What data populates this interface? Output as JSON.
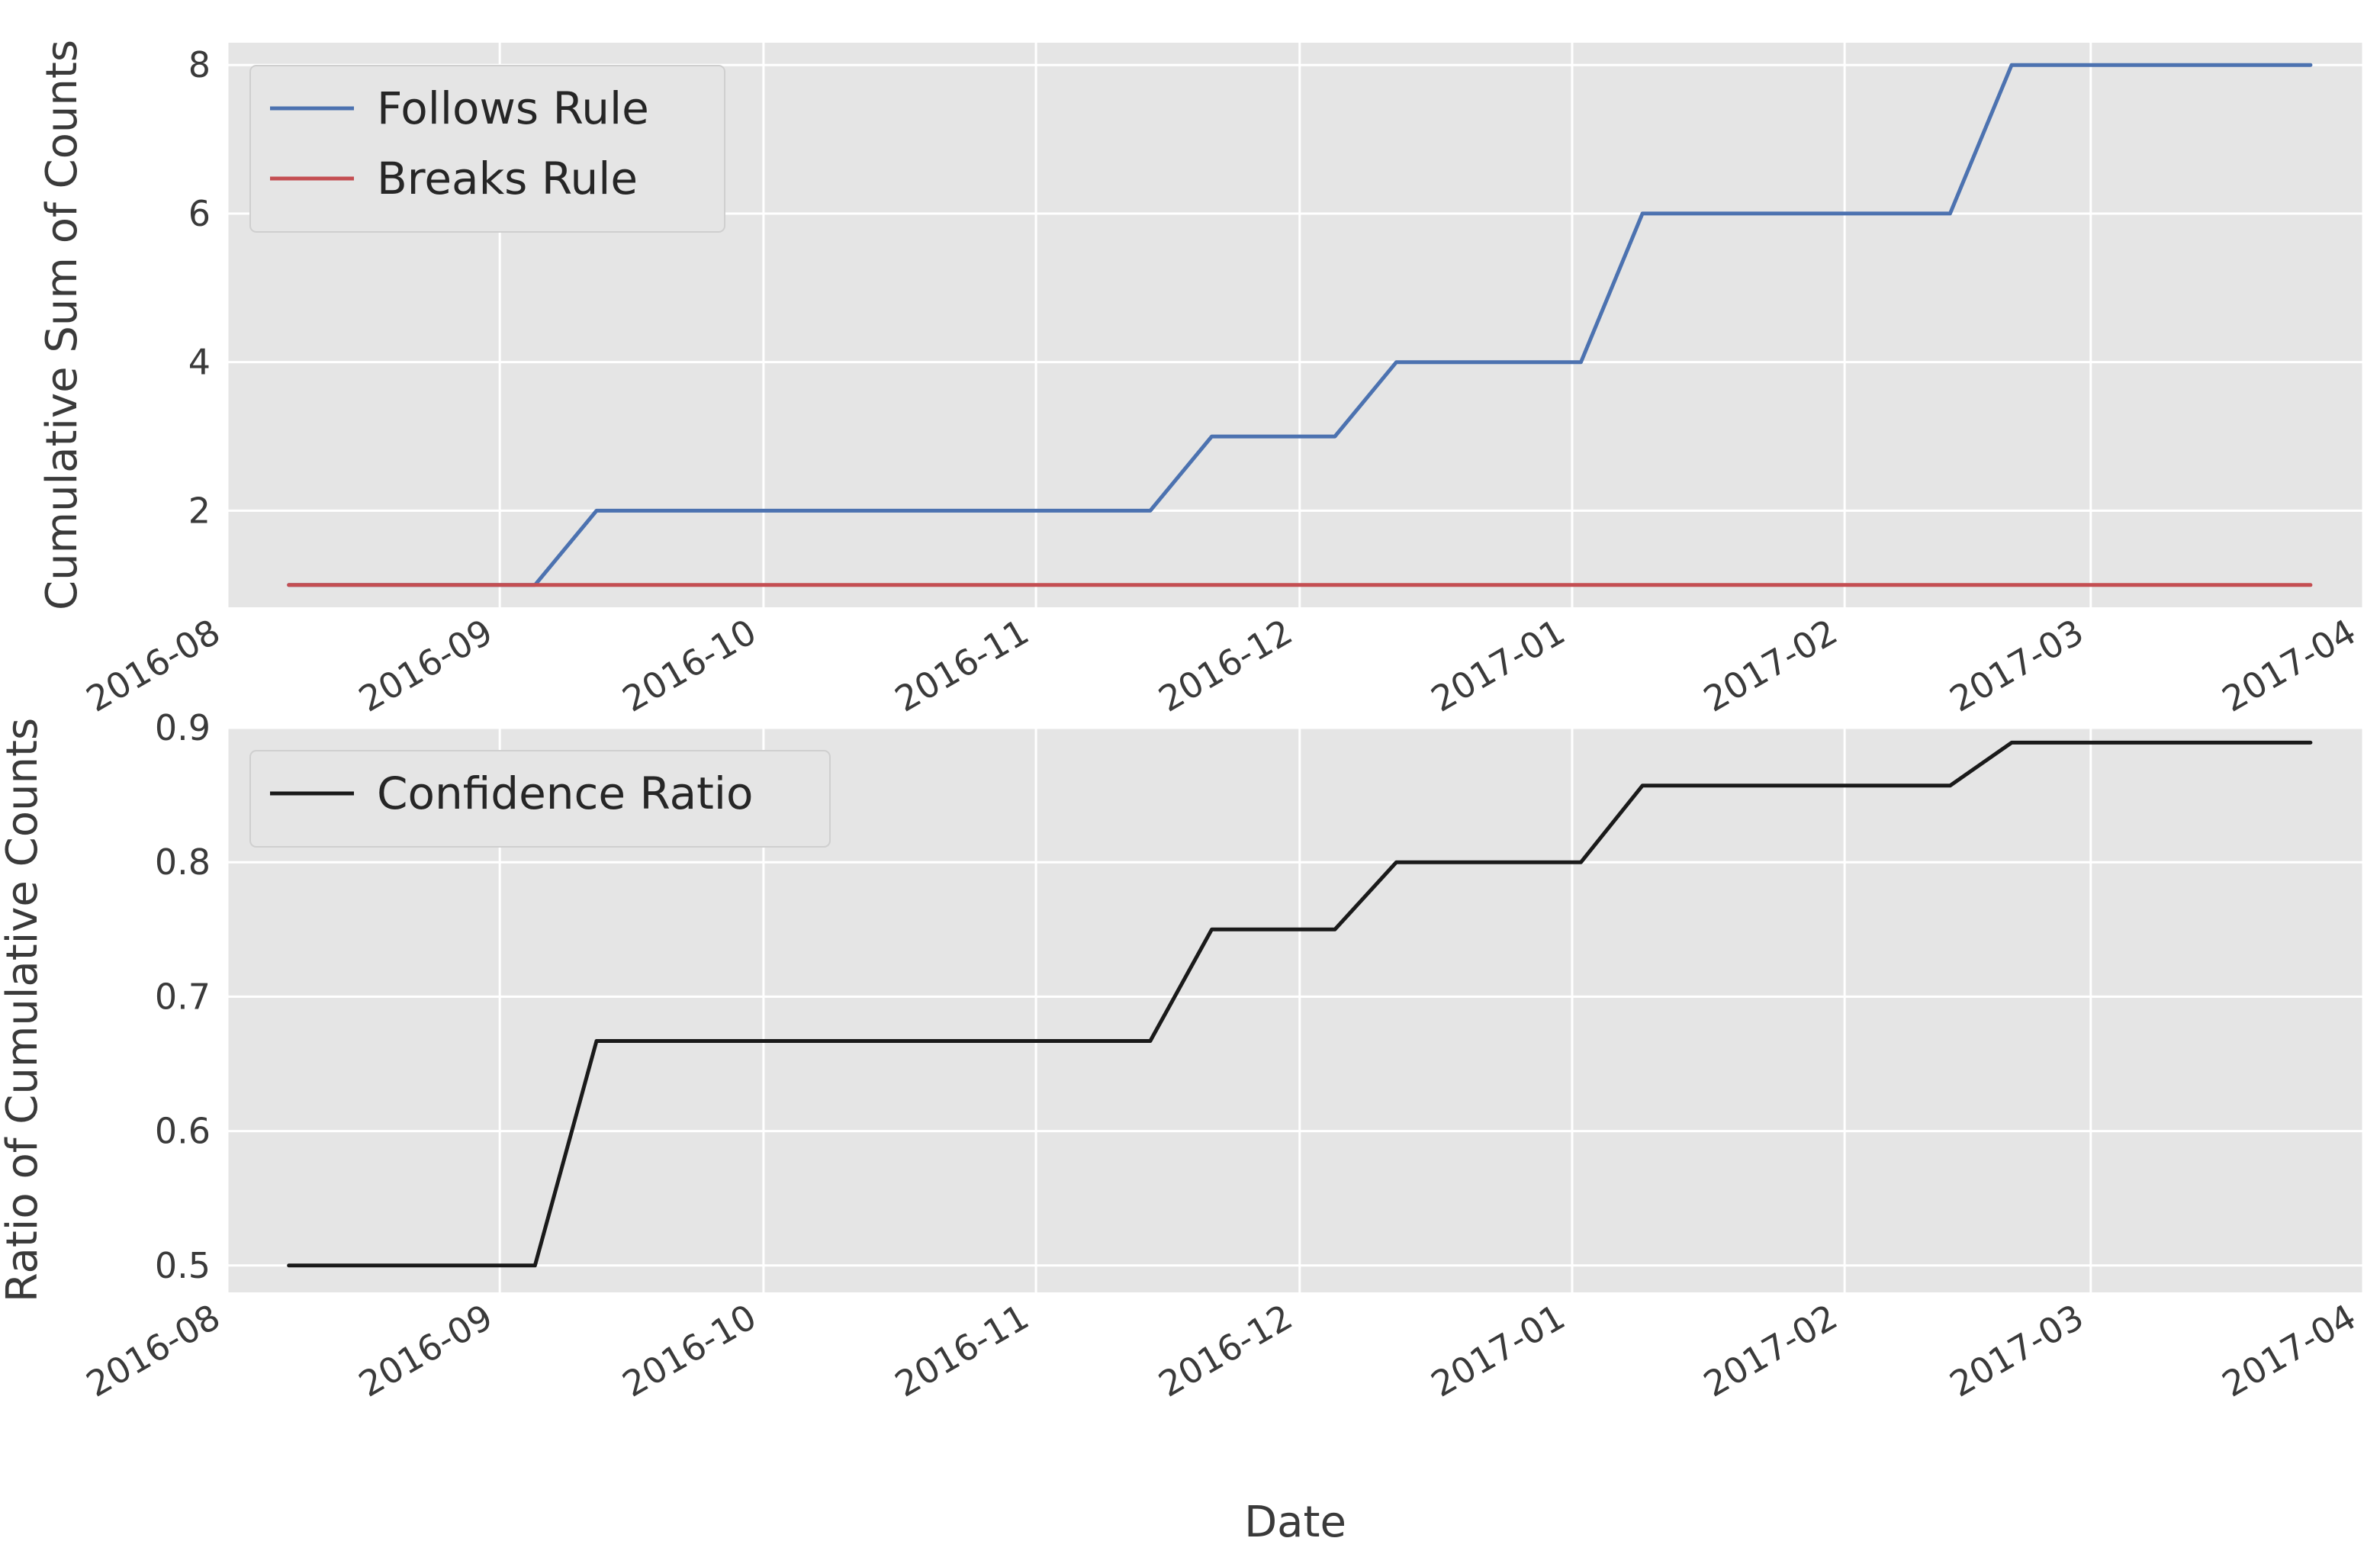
{
  "chart_data": [
    {
      "type": "line",
      "title": "",
      "xlabel": "",
      "ylabel": "Cumulative Sum of Counts",
      "x_type": "date",
      "xlim": [
        "2016-08-01",
        "2017-04-01"
      ],
      "ylim": [
        0.7,
        8.3
      ],
      "yticks": [
        2,
        4,
        6,
        8
      ],
      "xticks": [
        "2016-08",
        "2016-09",
        "2016-10",
        "2016-11",
        "2016-12",
        "2017-01",
        "2017-02",
        "2017-03",
        "2017-04"
      ],
      "grid": true,
      "background": "#e5e5e5",
      "legend_position": "top-left",
      "series": [
        {
          "name": "Follows Rule",
          "color": "#4c72b0",
          "points": [
            [
              "2016-08-08",
              1
            ],
            [
              "2016-09-05",
              1
            ],
            [
              "2016-09-12",
              2
            ],
            [
              "2016-11-14",
              2
            ],
            [
              "2016-11-21",
              3
            ],
            [
              "2016-12-05",
              3
            ],
            [
              "2016-12-12",
              4
            ],
            [
              "2017-01-02",
              4
            ],
            [
              "2017-01-09",
              6
            ],
            [
              "2017-02-13",
              6
            ],
            [
              "2017-02-20",
              8
            ],
            [
              "2017-03-26",
              8
            ]
          ]
        },
        {
          "name": "Breaks Rule",
          "color": "#c44e52",
          "points": [
            [
              "2016-08-08",
              1
            ],
            [
              "2017-03-26",
              1
            ]
          ]
        }
      ]
    },
    {
      "type": "line",
      "title": "",
      "xlabel": "Date",
      "ylabel": "Ratio of Cumulative Counts",
      "x_type": "date",
      "xlim": [
        "2016-08-01",
        "2017-04-01"
      ],
      "ylim": [
        0.48,
        0.9
      ],
      "yticks": [
        0.5,
        0.6,
        0.7,
        0.8,
        0.9
      ],
      "xticks": [
        "2016-08",
        "2016-09",
        "2016-10",
        "2016-11",
        "2016-12",
        "2017-01",
        "2017-02",
        "2017-03",
        "2017-04"
      ],
      "grid": true,
      "background": "#e5e5e5",
      "legend_position": "top-left",
      "series": [
        {
          "name": "Confidence Ratio",
          "color": "#1a1a1a",
          "points": [
            [
              "2016-08-08",
              0.5
            ],
            [
              "2016-09-05",
              0.5
            ],
            [
              "2016-09-12",
              0.667
            ],
            [
              "2016-11-14",
              0.667
            ],
            [
              "2016-11-21",
              0.75
            ],
            [
              "2016-12-05",
              0.75
            ],
            [
              "2016-12-12",
              0.8
            ],
            [
              "2017-01-02",
              0.8
            ],
            [
              "2017-01-09",
              0.857
            ],
            [
              "2017-02-13",
              0.857
            ],
            [
              "2017-02-20",
              0.889
            ],
            [
              "2017-03-26",
              0.889
            ]
          ]
        }
      ]
    }
  ]
}
